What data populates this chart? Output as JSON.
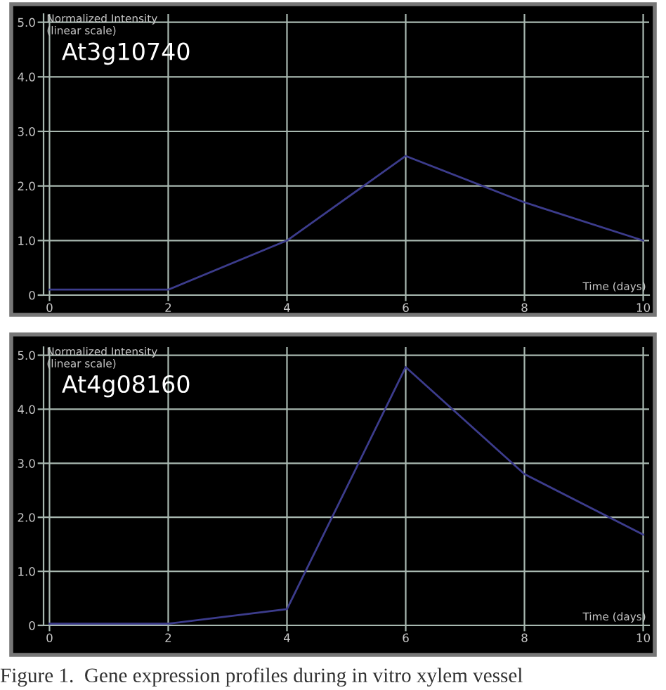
{
  "chart_data": [
    {
      "type": "line",
      "title": "At3g10740",
      "ylabel": "Normalized Intensity\n(linear scale)",
      "xlabel": "Time (days)",
      "x": [
        0,
        2,
        4,
        6,
        8,
        10
      ],
      "series": [
        {
          "color": "#3c3c8c",
          "values": [
            0.1,
            0.1,
            1.0,
            2.55,
            1.7,
            1.0
          ]
        }
      ],
      "xlim": [
        -0.1,
        10.1
      ],
      "ylim": [
        0,
        5.15
      ],
      "xticks": [
        0,
        2,
        4,
        6,
        8,
        10
      ],
      "yticks": [
        0,
        {
          "value": 1,
          "label": "1.0"
        },
        {
          "value": 2,
          "label": "2.0"
        },
        {
          "value": 3,
          "label": "3.0"
        },
        {
          "value": 4,
          "label": "4.0"
        },
        {
          "value": 5,
          "label": "5.0"
        }
      ],
      "grid": true,
      "marker": "none",
      "line_style": "solid"
    },
    {
      "type": "line",
      "title": "At4g08160",
      "ylabel": "Normalized Intensity\n(linear scale)",
      "xlabel": "Time (days)",
      "x": [
        0,
        2,
        4,
        6,
        8,
        10
      ],
      "series": [
        {
          "color": "#3c3c8c",
          "values": [
            0.03,
            0.03,
            0.3,
            4.78,
            2.8,
            1.68
          ]
        }
      ],
      "xlim": [
        -0.1,
        10.1
      ],
      "ylim": [
        0,
        5.15
      ],
      "xticks": [
        0,
        2,
        4,
        6,
        8,
        10
      ],
      "yticks": [
        0,
        {
          "value": 1,
          "label": "1.0"
        },
        {
          "value": 2,
          "label": "2.0"
        },
        {
          "value": 3,
          "label": "3.0"
        },
        {
          "value": 4,
          "label": "4.0"
        },
        {
          "value": 5,
          "label": "5.0"
        }
      ],
      "grid": true,
      "marker": "none",
      "line_style": "solid",
      "annotations": [
        "Figure 1.  Gene expression profiles during in vitro xylem vessel"
      ]
    }
  ]
}
